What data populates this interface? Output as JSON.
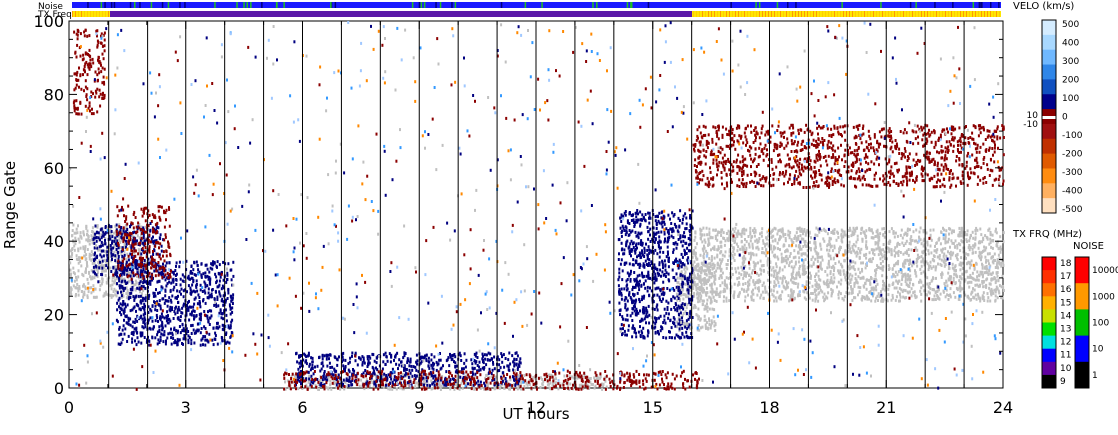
{
  "chart_data": {
    "type": "scatter",
    "title": "",
    "xlabel": "UT hours",
    "ylabel": "Range Gate",
    "xlim": [
      0,
      24
    ],
    "ylim": [
      0,
      100
    ],
    "x_ticks": [
      "0",
      "3",
      "6",
      "9",
      "12",
      "15",
      "18",
      "21",
      "24"
    ],
    "y_ticks": [
      "0",
      "20",
      "40",
      "60",
      "80",
      "100"
    ],
    "grid": false,
    "top_strips": {
      "noise_label": "Noise",
      "txfreq_label": "TX Freq"
    },
    "beam_boundaries_ut": [
      1.02,
      2.02,
      3.0,
      4.0,
      5.0,
      6.0,
      7.0,
      8.0,
      9.0,
      10.0,
      11.0,
      12.0,
      13.0,
      14.0,
      15.0,
      16.0,
      17.0,
      18.0,
      19.0,
      20.0,
      21.0,
      22.0,
      23.0
    ],
    "colorbars": {
      "velocity": {
        "title": "VELO (km/s)",
        "ticks": [
          "500",
          "400",
          "300",
          "200",
          "100",
          "0",
          "-100",
          "-200",
          "-300",
          "-400",
          "-500"
        ],
        "side_ticks": [
          "10",
          "-10"
        ]
      },
      "txfreq": {
        "title": "TX FRQ (MHz)",
        "ticks": [
          "18",
          "17",
          "16",
          "15",
          "14",
          "13",
          "12",
          "11",
          "10",
          "9"
        ]
      },
      "noise": {
        "title": "NOISE",
        "ticks": [
          "10000",
          "1000",
          "100",
          "10",
          "1"
        ]
      }
    },
    "series": [
      {
        "name": "ground scatter (grey)",
        "color": "#c0c0c0",
        "regions": [
          {
            "x0": 0.0,
            "x1": 2.0,
            "y0": 25,
            "y1": 45
          },
          {
            "x0": 5.5,
            "x1": 13.8,
            "y0": 0,
            "y1": 4
          },
          {
            "x0": 15.6,
            "x1": 16.6,
            "y0": 16,
            "y1": 34
          },
          {
            "x0": 16.0,
            "x1": 24.0,
            "y0": 24,
            "y1": 44
          }
        ]
      },
      {
        "name": "positive velocity (blue)",
        "color": "#000080",
        "regions": [
          {
            "x0": 1.2,
            "x1": 4.2,
            "y0": 12,
            "y1": 35
          },
          {
            "x0": 5.8,
            "x1": 11.6,
            "y0": 1,
            "y1": 10
          },
          {
            "x0": 14.1,
            "x1": 16.0,
            "y0": 14,
            "y1": 49
          },
          {
            "x0": 0.6,
            "x1": 2.4,
            "y0": 31,
            "y1": 45
          }
        ]
      },
      {
        "name": "negative velocity (red)",
        "color": "#8b0000",
        "regions": [
          {
            "x0": 1.2,
            "x1": 2.6,
            "y0": 30,
            "y1": 50
          },
          {
            "x0": 0.1,
            "x1": 0.9,
            "y0": 75,
            "y1": 98
          },
          {
            "x0": 5.5,
            "x1": 16.2,
            "y0": 0,
            "y1": 5
          },
          {
            "x0": 16.0,
            "x1": 24.0,
            "y0": 55,
            "y1": 72
          }
        ]
      }
    ]
  }
}
